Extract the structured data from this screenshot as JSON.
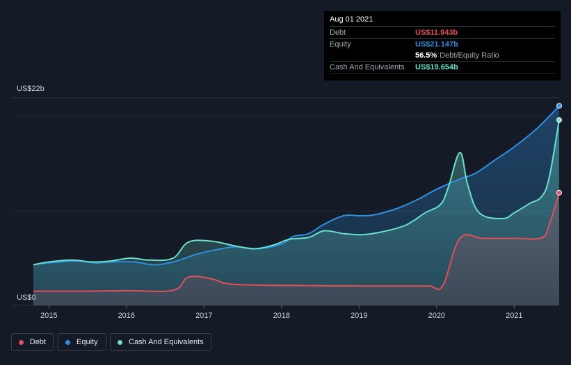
{
  "tooltip": {
    "date": "Aug 01 2021",
    "debt_label": "Debt",
    "debt_value": "US$11.943b",
    "equity_label": "Equity",
    "equity_value": "US$21.147b",
    "ratio_value": "56.5%",
    "ratio_label": "Debt/Equity Ratio",
    "cash_label": "Cash And Equivalents",
    "cash_value": "US$19.654b"
  },
  "legend": {
    "debt": "Debt",
    "equity": "Equity",
    "cash": "Cash And Equivalents"
  },
  "colors": {
    "debt": "#e0505b",
    "equity": "#2f8fe0",
    "cash": "#6ae0cc",
    "background": "#151b26"
  },
  "chart_data": {
    "type": "area",
    "title": "",
    "ylabel": "",
    "xlabel": "",
    "y_top_label": "US$22b",
    "y_bottom_label": "US$0",
    "ylim": [
      0,
      22
    ],
    "xlim": [
      2014.8,
      2021.58
    ],
    "x_ticks": [
      2015,
      2016,
      2017,
      2018,
      2019,
      2020,
      2021
    ],
    "x_tick_labels": [
      "2015",
      "2016",
      "2017",
      "2018",
      "2019",
      "2020",
      "2021"
    ],
    "series": [
      {
        "name": "Debt",
        "points": [
          [
            2014.8,
            1.5
          ],
          [
            2015.5,
            1.5
          ],
          [
            2016.0,
            1.55
          ],
          [
            2016.6,
            1.6
          ],
          [
            2016.8,
            3.0
          ],
          [
            2017.1,
            2.8
          ],
          [
            2017.3,
            2.3
          ],
          [
            2017.7,
            2.15
          ],
          [
            2018.3,
            2.1
          ],
          [
            2019.0,
            2.05
          ],
          [
            2019.5,
            2.05
          ],
          [
            2019.9,
            2.05
          ],
          [
            2020.08,
            2.1
          ],
          [
            2020.3,
            7.1
          ],
          [
            2020.6,
            7.1
          ],
          [
            2021.0,
            7.1
          ],
          [
            2021.35,
            7.15
          ],
          [
            2021.45,
            8.5
          ],
          [
            2021.58,
            11.94
          ]
        ]
      },
      {
        "name": "Equity",
        "points": [
          [
            2014.8,
            4.3
          ],
          [
            2015.0,
            4.5
          ],
          [
            2015.35,
            4.7
          ],
          [
            2015.6,
            4.5
          ],
          [
            2015.8,
            4.6
          ],
          [
            2016.1,
            4.6
          ],
          [
            2016.35,
            4.3
          ],
          [
            2016.6,
            4.6
          ],
          [
            2016.9,
            5.4
          ],
          [
            2017.1,
            5.8
          ],
          [
            2017.4,
            6.2
          ],
          [
            2017.7,
            6.0
          ],
          [
            2018.0,
            6.5
          ],
          [
            2018.15,
            7.3
          ],
          [
            2018.35,
            7.6
          ],
          [
            2018.55,
            8.6
          ],
          [
            2018.8,
            9.5
          ],
          [
            2019.0,
            9.5
          ],
          [
            2019.2,
            9.6
          ],
          [
            2019.5,
            10.3
          ],
          [
            2019.75,
            11.2
          ],
          [
            2020.0,
            12.3
          ],
          [
            2020.3,
            13.4
          ],
          [
            2020.5,
            14.0
          ],
          [
            2020.75,
            15.4
          ],
          [
            2021.0,
            16.8
          ],
          [
            2021.3,
            18.8
          ],
          [
            2021.58,
            21.15
          ]
        ]
      },
      {
        "name": "Cash And Equivalents",
        "points": [
          [
            2014.8,
            4.3
          ],
          [
            2015.0,
            4.6
          ],
          [
            2015.3,
            4.8
          ],
          [
            2015.55,
            4.6
          ],
          [
            2015.8,
            4.7
          ],
          [
            2016.05,
            5.0
          ],
          [
            2016.3,
            4.8
          ],
          [
            2016.6,
            5.0
          ],
          [
            2016.8,
            6.7
          ],
          [
            2017.1,
            6.8
          ],
          [
            2017.4,
            6.3
          ],
          [
            2017.65,
            6.0
          ],
          [
            2017.9,
            6.4
          ],
          [
            2018.1,
            7.0
          ],
          [
            2018.35,
            7.2
          ],
          [
            2018.55,
            7.9
          ],
          [
            2018.8,
            7.6
          ],
          [
            2019.05,
            7.5
          ],
          [
            2019.3,
            7.8
          ],
          [
            2019.6,
            8.5
          ],
          [
            2019.85,
            9.8
          ],
          [
            2020.05,
            10.7
          ],
          [
            2020.15,
            12.5
          ],
          [
            2020.3,
            16.2
          ],
          [
            2020.4,
            12.8
          ],
          [
            2020.55,
            9.8
          ],
          [
            2020.85,
            9.2
          ],
          [
            2021.0,
            9.8
          ],
          [
            2021.2,
            10.8
          ],
          [
            2021.35,
            11.5
          ],
          [
            2021.45,
            13.5
          ],
          [
            2021.58,
            19.65
          ]
        ]
      }
    ]
  }
}
